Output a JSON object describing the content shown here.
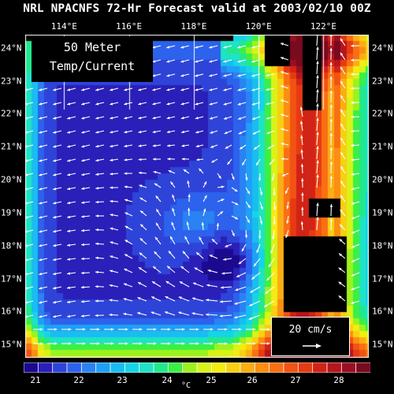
{
  "title": "NRL NPACNFS 72-Hr Forecast valid at 2003/02/10 00Z",
  "panel_label": {
    "line1": "50 Meter",
    "line2": "Temp/Current"
  },
  "lon_labels": [
    "114°E",
    "116°E",
    "118°E",
    "120°E",
    "122°E"
  ],
  "lat_labels": [
    "24°N",
    "23°N",
    "22°N",
    "21°N",
    "20°N",
    "19°N",
    "18°N",
    "17°N",
    "16°N",
    "15°N"
  ],
  "reference_vector": {
    "label": "20 cm/s",
    "speed_cm_s": 20
  },
  "colorbar": {
    "unit": "°C",
    "tick_labels": [
      "21",
      "22",
      "23",
      "24",
      "25",
      "26",
      "27",
      "28"
    ],
    "colors": [
      "#1b0a8f",
      "#2a1fb8",
      "#2e44d8",
      "#2c62ec",
      "#2a82f3",
      "#1fa0f6",
      "#19bdf0",
      "#16d4e6",
      "#1fe3c4",
      "#22e88d",
      "#3cef45",
      "#9cf21e",
      "#d8f317",
      "#f4ec14",
      "#f9cf13",
      "#fbae13",
      "#fb8e13",
      "#f87013",
      "#f25213",
      "#e63a13",
      "#d12316",
      "#b7151c",
      "#9b0e20",
      "#7a0a1e"
    ]
  },
  "map": {
    "lon_range": [
      112.8,
      123.4
    ],
    "lat_range": [
      14.6,
      24.4
    ],
    "ocean_color_range_c": [
      21,
      28.5
    ],
    "land_color": "#000000"
  }
}
